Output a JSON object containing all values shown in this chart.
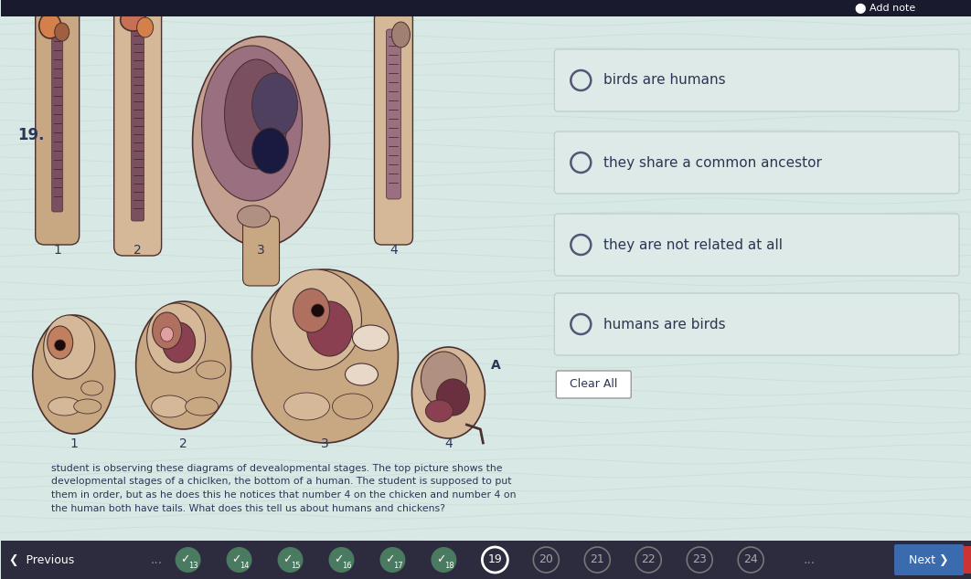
{
  "bg_color": "#d8e8e4",
  "wave_color": "#c4d8d4",
  "top_bar_color": "#1a1a2e",
  "add_note_text": "Add note",
  "question_num": "19.",
  "answer_options": [
    "birds are humans",
    "they share a common ancestor",
    "they are not related at all",
    "humans are birds"
  ],
  "question_text_line1": "student is observing these diagrams of devealopmental stages. The top picture shows the",
  "question_text_line2": "developmental stages of a chiclken, the bottom of a human. The student is supposed to put",
  "question_text_line3": "them in order, but as he does this he notices that number 4 on the chicken and number 4 on",
  "question_text_line4": "the human both have tails. What does this tell us about humans and chickens?",
  "clear_all_text": "Clear All",
  "checked_items": [
    "13",
    "14",
    "15",
    "16",
    "17",
    "18"
  ],
  "current_item": "19",
  "nav_numbers": [
    "13",
    "14",
    "15",
    "16",
    "17",
    "18",
    "19",
    "20",
    "21",
    "22",
    "23",
    "24"
  ],
  "option_box_bg": "#deeae7",
  "option_border": "#c0d0cc",
  "option_text_color": "#2d3555",
  "radio_edge_color": "#555577",
  "check_fill": "#4a7a60",
  "nav_bg": "#2c2c3e",
  "next_btn_color": "#3a6baf",
  "label_color": "#2d3555",
  "embryo_skin": "#c8a882",
  "embryo_skin2": "#d4b898",
  "embryo_dark": "#7a5060",
  "embryo_mid": "#9a7080",
  "embryo_orange": "#d4804a",
  "embryo_outline": "#4a3030"
}
